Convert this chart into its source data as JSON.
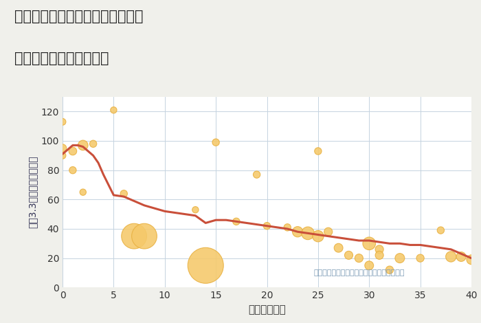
{
  "title_line1": "福岡県北九州市小倉北区親和町の",
  "title_line2": "築年数別中古戸建て価格",
  "xlabel": "築年数（年）",
  "ylabel": "坪（3.3㎡）単価（万円）",
  "bg_color": "#f0f0eb",
  "plot_bg_color": "#ffffff",
  "grid_color": "#c5d3e0",
  "line_color": "#c94f3a",
  "bubble_color": "#f5c96a",
  "bubble_edge_color": "#e8b040",
  "annotation_color": "#7a9ab5",
  "annotation_text": "円の大きさは、取引のあった物件面積を示す",
  "xlim": [
    0,
    40
  ],
  "ylim": [
    0,
    130
  ],
  "xticks": [
    0,
    5,
    10,
    15,
    20,
    25,
    30,
    35,
    40
  ],
  "yticks": [
    0,
    20,
    40,
    60,
    80,
    100,
    120
  ],
  "scatter_x": [
    0,
    0,
    0,
    1,
    1,
    2,
    2,
    3,
    5,
    6,
    7,
    8,
    13,
    14,
    15,
    17,
    19,
    20,
    22,
    23,
    24,
    25,
    25,
    26,
    27,
    28,
    29,
    30,
    30,
    31,
    31,
    32,
    33,
    35,
    37,
    38,
    39,
    40
  ],
  "scatter_y": [
    113,
    95,
    90,
    93,
    80,
    97,
    65,
    98,
    121,
    64,
    35,
    35,
    53,
    15,
    99,
    45,
    77,
    42,
    41,
    38,
    37,
    93,
    35,
    38,
    27,
    22,
    20,
    30,
    15,
    26,
    22,
    12,
    20,
    20,
    39,
    21,
    21,
    19
  ],
  "scatter_size": [
    50,
    70,
    50,
    70,
    55,
    110,
    45,
    55,
    45,
    55,
    700,
    700,
    45,
    1400,
    55,
    55,
    55,
    55,
    55,
    120,
    180,
    55,
    140,
    75,
    85,
    75,
    75,
    180,
    85,
    75,
    75,
    65,
    100,
    65,
    55,
    120,
    100,
    100
  ],
  "line_x": [
    0,
    0.5,
    1,
    1.5,
    2,
    2.5,
    3,
    3.5,
    4,
    4.5,
    5,
    6,
    7,
    8,
    9,
    10,
    11,
    12,
    13,
    14,
    15,
    16,
    17,
    18,
    19,
    20,
    21,
    22,
    23,
    24,
    25,
    26,
    27,
    28,
    29,
    30,
    31,
    32,
    33,
    34,
    35,
    36,
    37,
    38,
    39,
    40
  ],
  "line_y": [
    91,
    94,
    97,
    97,
    96,
    93,
    90,
    85,
    77,
    70,
    63,
    62,
    59,
    56,
    54,
    52,
    51,
    50,
    49,
    44,
    46,
    46,
    45,
    44,
    43,
    42,
    41,
    40,
    38,
    37,
    36,
    35,
    34,
    33,
    32,
    32,
    31,
    30,
    30,
    29,
    29,
    28,
    27,
    26,
    23,
    20
  ]
}
